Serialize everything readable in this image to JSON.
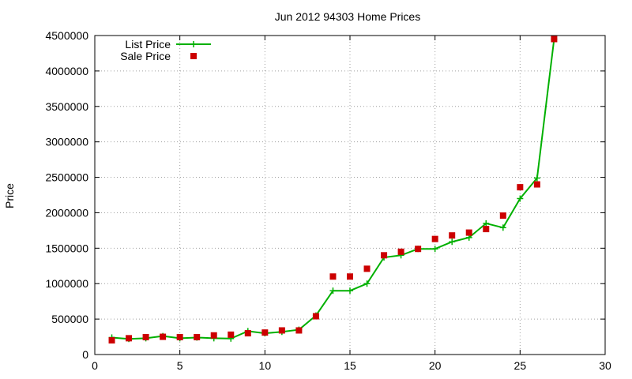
{
  "chart_data": {
    "type": "line",
    "title": "Jun 2012 94303 Home Prices",
    "xlabel": "",
    "ylabel": "Price",
    "xlim": [
      0,
      30
    ],
    "ylim": [
      0,
      4500000
    ],
    "xticks": [
      0,
      5,
      10,
      15,
      20,
      25,
      30
    ],
    "yticks": [
      0,
      500000,
      1000000,
      1500000,
      2000000,
      2500000,
      3000000,
      3500000,
      4000000,
      4500000
    ],
    "grid": true,
    "legend": "top-left",
    "series": [
      {
        "name": "List Price",
        "style": "line-plus",
        "color": "#00b000",
        "x": [
          1,
          2,
          3,
          4,
          5,
          6,
          7,
          8,
          9,
          10,
          11,
          12,
          13,
          14,
          15,
          16,
          17,
          18,
          19,
          20,
          21,
          22,
          23,
          24,
          25,
          26,
          27
        ],
        "values": [
          240000,
          220000,
          230000,
          260000,
          230000,
          240000,
          230000,
          225000,
          330000,
          300000,
          320000,
          350000,
          550000,
          900000,
          900000,
          1000000,
          1370000,
          1400000,
          1490000,
          1490000,
          1590000,
          1650000,
          1850000,
          1790000,
          2200000,
          2490000,
          4450000
        ]
      },
      {
        "name": "Sale Price",
        "style": "square-marker",
        "color": "#cc0000",
        "x": [
          1,
          2,
          3,
          4,
          5,
          6,
          7,
          8,
          9,
          10,
          11,
          12,
          13,
          14,
          15,
          16,
          17,
          18,
          19,
          20,
          21,
          22,
          23,
          24,
          25,
          26,
          27
        ],
        "values": [
          200000,
          230000,
          245000,
          250000,
          245000,
          245000,
          270000,
          280000,
          300000,
          310000,
          340000,
          340000,
          540000,
          1100000,
          1100000,
          1210000,
          1400000,
          1450000,
          1490000,
          1630000,
          1680000,
          1720000,
          1770000,
          1960000,
          2360000,
          2400000,
          4450000
        ]
      }
    ]
  }
}
